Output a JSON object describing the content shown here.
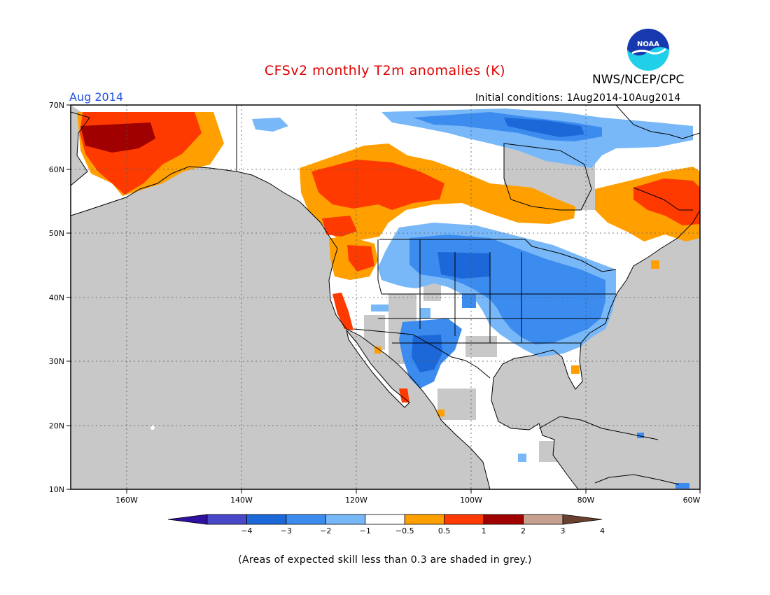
{
  "title": "CFSv2 monthly T2m anomalies (K)",
  "organization": "NWS/NCEP/CPC",
  "logo_text": "NOAA",
  "month": "Aug 2014",
  "initial_conditions": "Initial conditions: 1Aug2014-10Aug2014",
  "lat_labels": [
    "70N",
    "60N",
    "50N",
    "40N",
    "30N",
    "20N",
    "10N"
  ],
  "lon_labels": [
    "160W",
    "140W",
    "120W",
    "100W",
    "80W",
    "60W"
  ],
  "colorbar": {
    "labels": [
      "−4",
      "−3",
      "−2",
      "−1",
      "−0.5",
      "0.5",
      "1",
      "2",
      "3",
      "4"
    ],
    "colors": [
      "#3010a0",
      "#4848c8",
      "#1c68d8",
      "#3c8cf0",
      "#78b8f8",
      "#ffffff",
      "#ffa000",
      "#ff3a00",
      "#a00000",
      "#c8a090",
      "#6a4030"
    ]
  },
  "colors": {
    "land_base": "#ffffff",
    "ocean_low_skill": "#c8c8c8",
    "title": "#e00000",
    "month": "#2050e0"
  },
  "footnote": "(Areas of expected skill less than 0.3 are shaded in grey.)"
}
